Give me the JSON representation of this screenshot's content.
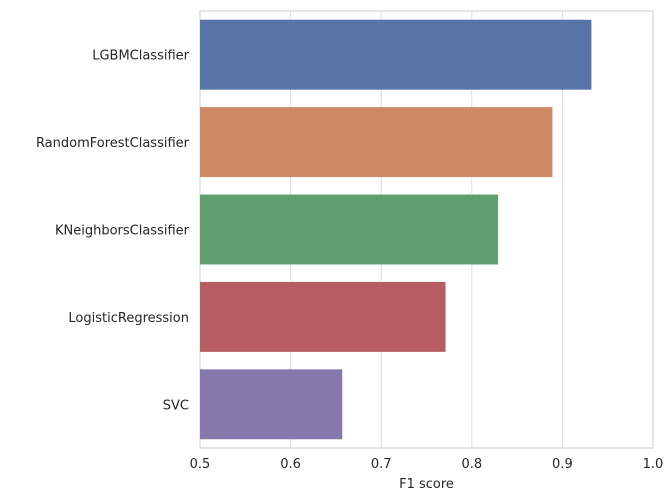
{
  "chart_data": {
    "type": "bar",
    "orientation": "horizontal",
    "categories": [
      "LGBMClassifier",
      "RandomForestClassifier",
      "KNeighborsClassifier",
      "LogisticRegression",
      "SVC"
    ],
    "values": [
      0.932,
      0.889,
      0.829,
      0.771,
      0.657
    ],
    "colors": [
      "#5874a6",
      "#cc8963",
      "#5f9e6e",
      "#b55d60",
      "#857aab"
    ],
    "xlabel": "F1 score",
    "ylabel": "",
    "xlim": [
      0.5,
      1.0
    ],
    "xticks": [
      0.5,
      0.6,
      0.7,
      0.8,
      0.9,
      1.0
    ],
    "xtick_labels": [
      "0.5",
      "0.6",
      "0.7",
      "0.8",
      "0.9",
      "1.0"
    ],
    "grid": true,
    "grid_axis": "x"
  }
}
